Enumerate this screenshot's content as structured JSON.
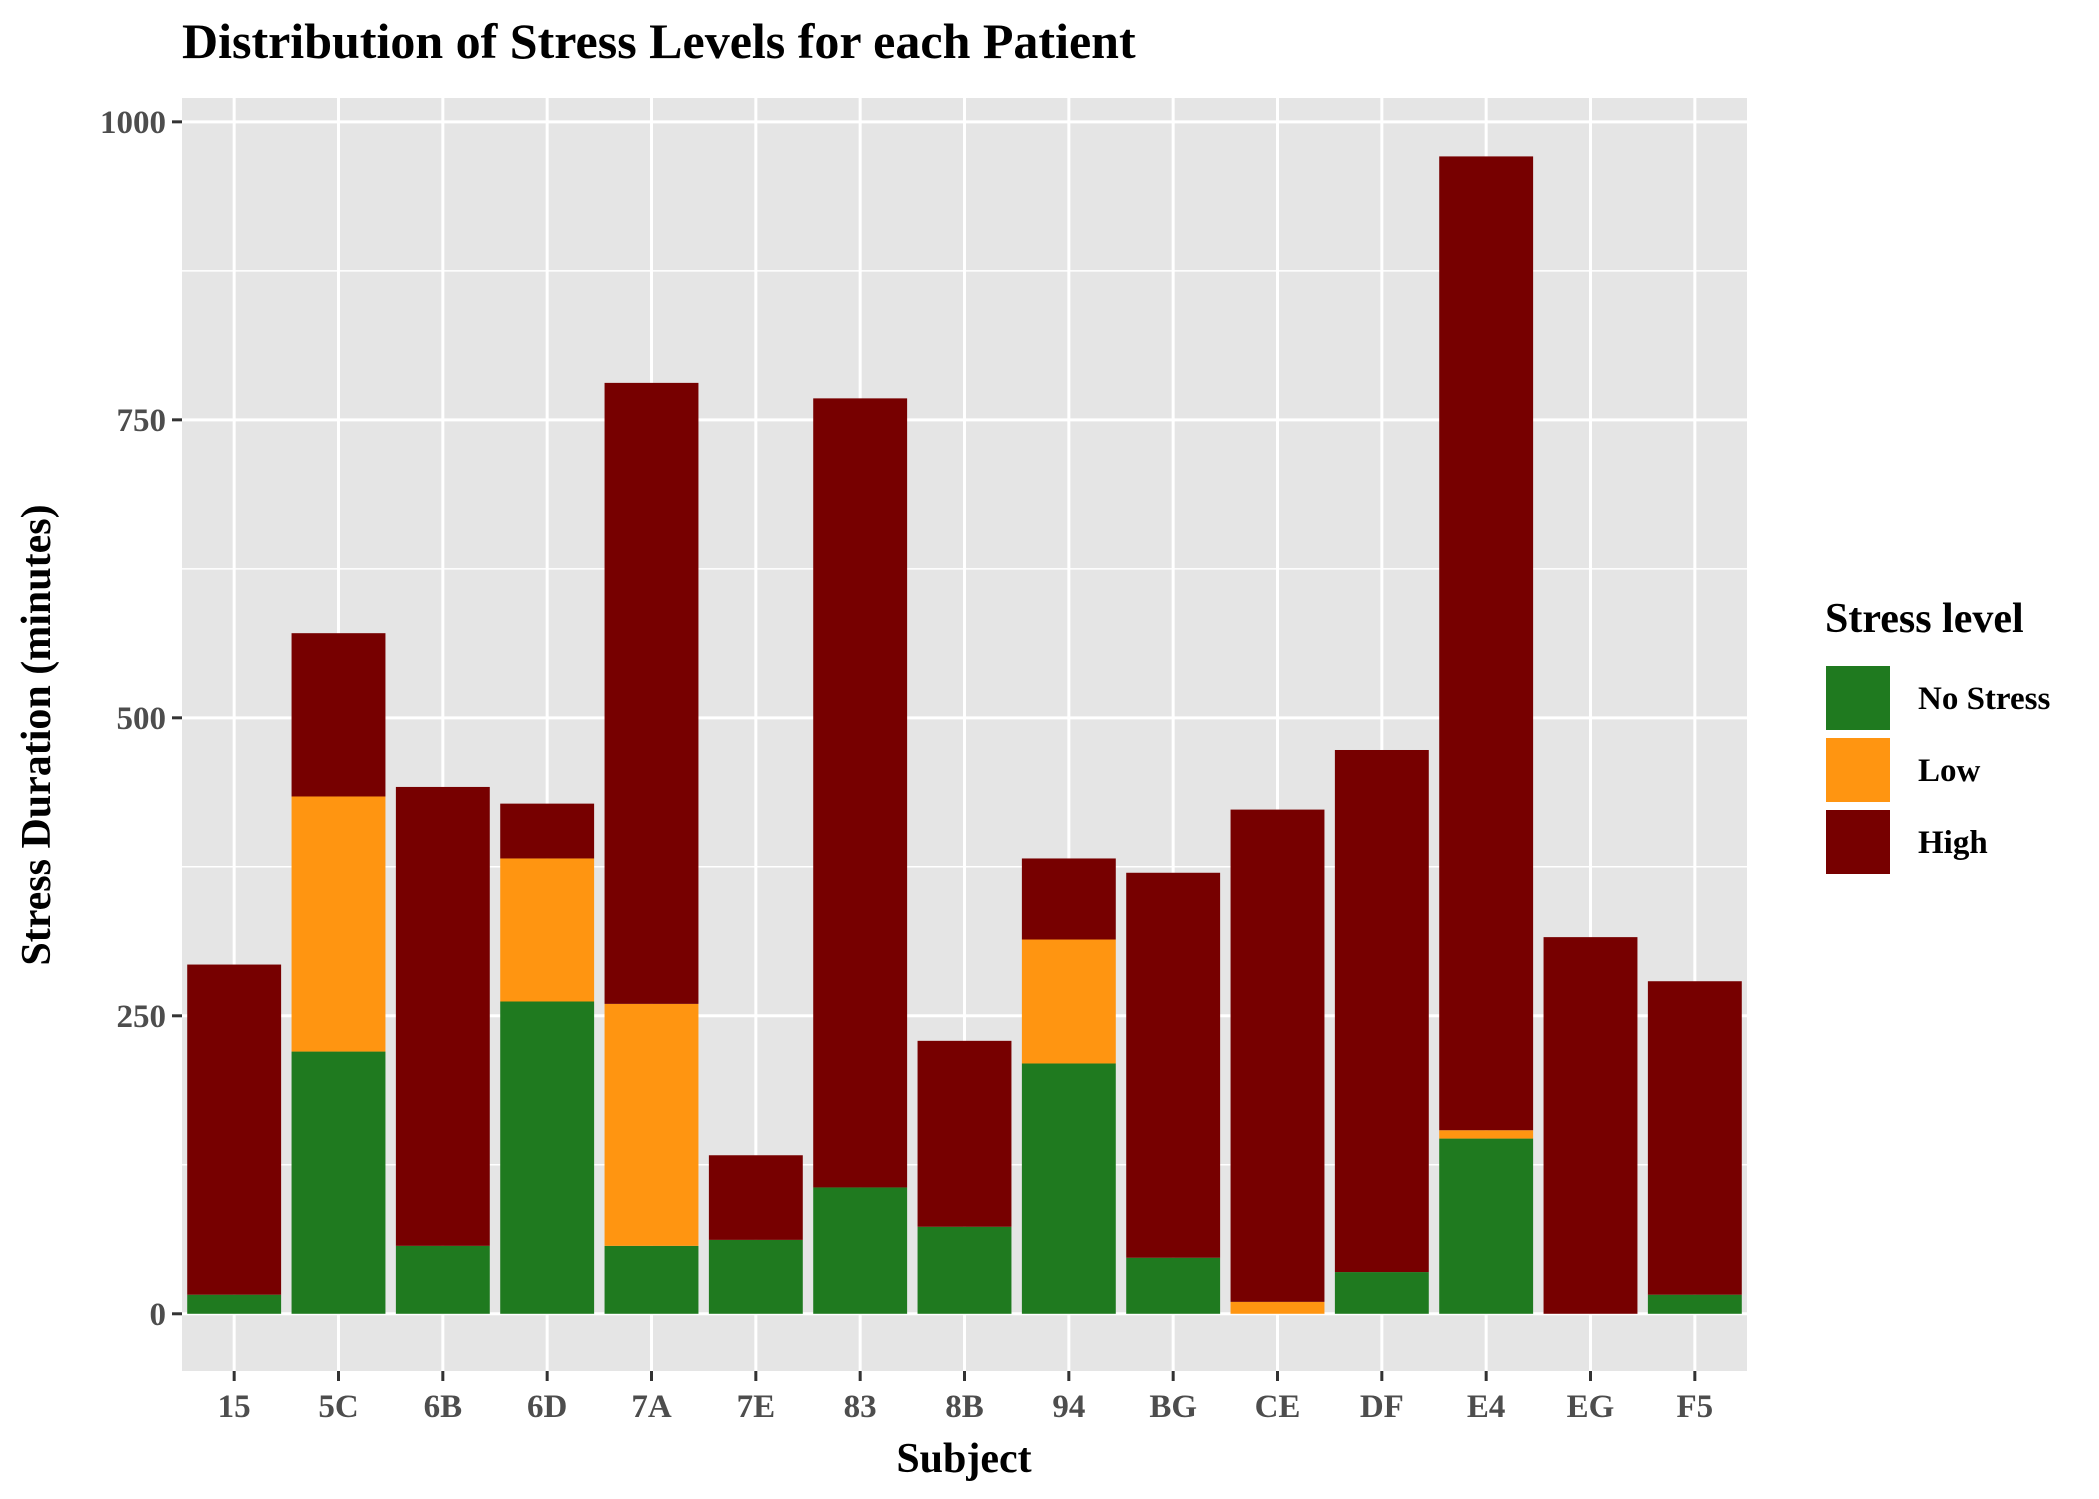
{
  "chart_data": {
    "type": "bar",
    "stacked": true,
    "title": "Distribution of Stress Levels for each Patient",
    "xlabel": "Subject",
    "ylabel": "Stress Duration (minutes)",
    "categories": [
      "15",
      "5C",
      "6B",
      "6D",
      "7A",
      "7E",
      "83",
      "8B",
      "94",
      "BG",
      "CE",
      "DF",
      "E4",
      "EG",
      "F5"
    ],
    "series": [
      {
        "name": "No Stress",
        "color": "#1f7a1f",
        "values": [
          16,
          220,
          57,
          262,
          57,
          62,
          106,
          73,
          210,
          47,
          0,
          35,
          147,
          0,
          16
        ]
      },
      {
        "name": "Low",
        "color": "#ff9511",
        "values": [
          0,
          214,
          0,
          120,
          203,
          0,
          0,
          0,
          104,
          0,
          10,
          0,
          7,
          0,
          0
        ]
      },
      {
        "name": "High",
        "color": "#770000",
        "values": [
          277,
          137,
          385,
          46,
          521,
          71,
          662,
          156,
          68,
          323,
          413,
          438,
          817,
          316,
          263
        ]
      }
    ],
    "ylim": [
      -48,
      1020
    ],
    "yticks": [
      0,
      250,
      500,
      750,
      1000
    ],
    "grid": true,
    "legend": {
      "title": "Stress level",
      "position": "right"
    }
  }
}
